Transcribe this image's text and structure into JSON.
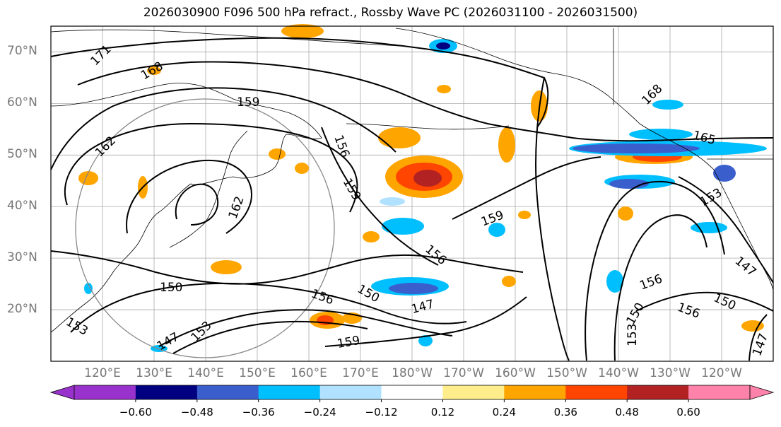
{
  "title": "2026030900 F096 500 hPa refract., Rossby Wave PC (2026031100 - 2026031500)",
  "map": {
    "lat_range": [
      10,
      75
    ],
    "lon_range": [
      110,
      250
    ],
    "lat_labels": [
      "20°N",
      "30°N",
      "40°N",
      "50°N",
      "60°N",
      "70°N"
    ],
    "lon_labels": [
      "120°E",
      "130°E",
      "140°E",
      "150°E",
      "160°E",
      "170°E",
      "180°W",
      "170°W",
      "160°W",
      "150°W",
      "140°W",
      "130°W",
      "120°W"
    ],
    "contour_labels": [
      "171",
      "168",
      "162",
      "159",
      "156",
      "159",
      "162",
      "159",
      "150",
      "156",
      "150",
      "147",
      "153",
      "147",
      "153",
      "156",
      "159",
      "168",
      "165",
      "153",
      "147",
      "156",
      "150",
      "156",
      "150",
      "153",
      "147"
    ],
    "colorbar": {
      "ticks": [
        "−0.60",
        "−0.48",
        "−0.36",
        "−0.24",
        "−0.12",
        "0.12",
        "0.24",
        "0.36",
        "0.48",
        "0.60"
      ],
      "colors": [
        "#9932CC",
        "#000080",
        "#3A5FCD",
        "#00BFFF",
        "#B0E2FF",
        "#FFFFFF",
        "#FFEC8B",
        "#FFA500",
        "#FF4500",
        "#B22222",
        "#FF82AB",
        "#FF82AB"
      ]
    },
    "palette": {
      "deep_purple": "#9932CC",
      "navy": "#000080",
      "royal_blue": "#3A5FCD",
      "sky_blue": "#00BFFF",
      "light_blue": "#B0E2FF",
      "light_yellow": "#FFEC8B",
      "orange": "#FFA500",
      "orange_red": "#FF4500",
      "firebrick": "#B22222",
      "pink": "#FF82AB"
    }
  }
}
